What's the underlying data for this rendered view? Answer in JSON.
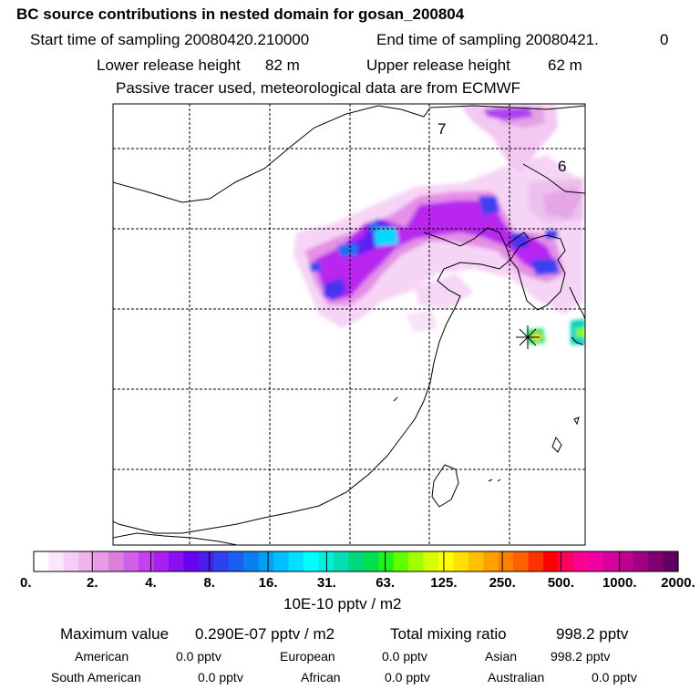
{
  "header": {
    "title": "BC  source contributions in nested domain for gosan_200804",
    "start_label": "Start time of sampling 20080420.210000",
    "end_label": "End time of sampling 20080421.",
    "end_value": "0",
    "lower_label": "Lower release height",
    "lower_value": "82 m",
    "upper_label": "Upper release height",
    "upper_value": "62 m",
    "tracer_note": "Passive tracer used, meteorological data are from ECMWF"
  },
  "map": {
    "region_labels": [
      "7",
      "6"
    ]
  },
  "colorbar": {
    "tick_labels": [
      "0.",
      "2.",
      "4.",
      "8.",
      "16.",
      "31.",
      "63.",
      "125.",
      "250.",
      "500.",
      "1000.",
      "2000."
    ],
    "colors": [
      "#ffffff",
      "#fbe6fb",
      "#f6cdf6",
      "#f0b3f0",
      "#e99ae9",
      "#dc7edc",
      "#d060e8",
      "#c440f0",
      "#a820f0",
      "#8a10f0",
      "#6a00f0",
      "#4a20e8",
      "#2e40f0",
      "#1a60f0",
      "#0a80f0",
      "#00a0f8",
      "#00c0ff",
      "#00e0ff",
      "#00ffff",
      "#00f0e0",
      "#00e0b0",
      "#00d880",
      "#00e050",
      "#20f020",
      "#60ff00",
      "#a0ff00",
      "#d8ff00",
      "#ffff00",
      "#ffe000",
      "#ffc000",
      "#ffa000",
      "#ff8000",
      "#ff6000",
      "#ff3000",
      "#ff0000",
      "#ff0060",
      "#ff0090",
      "#f000a0",
      "#d800a0",
      "#c00090",
      "#a00080",
      "#800070",
      "#600060"
    ],
    "unit_label": "10E-10 pptv / m2"
  },
  "summary": {
    "max_label": "Maximum value",
    "max_value": "0.290E-07 pptv / m2",
    "total_label": "Total mixing ratio",
    "total_value": "998.2 pptv",
    "sources": [
      {
        "name": "American",
        "value": "0.0 pptv"
      },
      {
        "name": "European",
        "value": "0.0 pptv"
      },
      {
        "name": "Asian",
        "value": "998.2 pptv"
      },
      {
        "name": "South American",
        "value": "0.0 pptv"
      },
      {
        "name": "African",
        "value": "0.0 pptv"
      },
      {
        "name": "Australian",
        "value": "0.0 pptv"
      }
    ]
  }
}
